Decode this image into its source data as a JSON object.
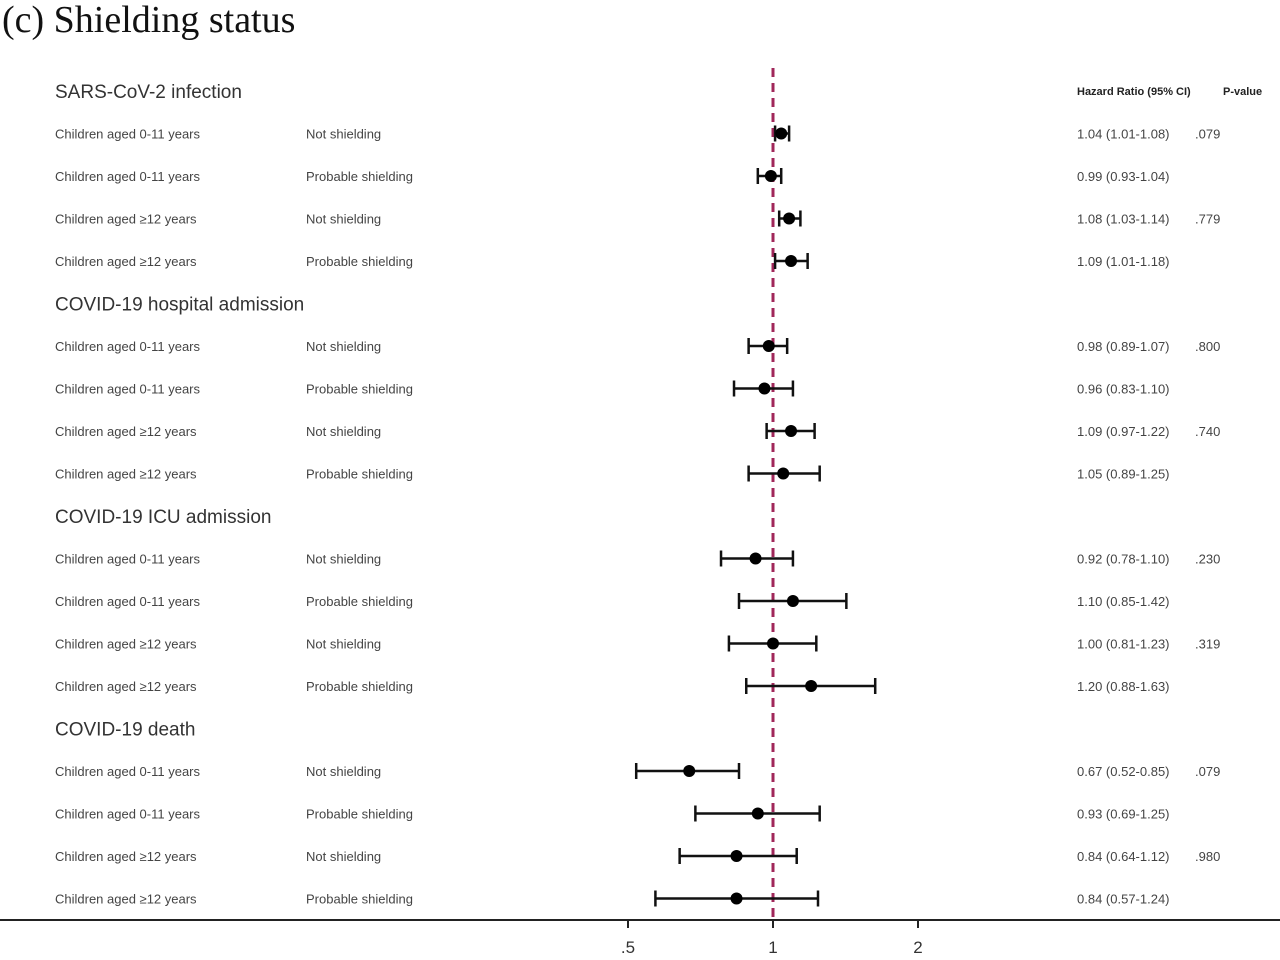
{
  "title": "(c) Shielding status",
  "chart_data": {
    "type": "forest",
    "x_scale": "log",
    "reference_line": 1,
    "reference_color": "#a0275a",
    "marker_color": "#000000",
    "xticks": [
      {
        "value": 0.5,
        "label": ".5"
      },
      {
        "value": 1,
        "label": "1"
      },
      {
        "value": 2,
        "label": "2"
      }
    ],
    "columns": {
      "hr": "Hazard Ratio (95% CI)",
      "p": "P-value"
    },
    "groups": [
      {
        "title": "SARS-CoV-2 infection",
        "rows": [
          {
            "age": "Children aged 0-11 years",
            "status": "Not shielding",
            "hr": 1.04,
            "lo": 1.01,
            "hi": 1.08,
            "text": "1.04 (1.01-1.08)",
            "p": ".079"
          },
          {
            "age": "Children aged 0-11 years",
            "status": "Probable shielding",
            "hr": 0.99,
            "lo": 0.93,
            "hi": 1.04,
            "text": "0.99 (0.93-1.04)",
            "p": ""
          },
          {
            "age": "Children aged ≥12 years",
            "status": "Not shielding",
            "hr": 1.08,
            "lo": 1.03,
            "hi": 1.14,
            "text": "1.08 (1.03-1.14)",
            "p": ".779"
          },
          {
            "age": "Children aged ≥12 years",
            "status": "Probable shielding",
            "hr": 1.09,
            "lo": 1.01,
            "hi": 1.18,
            "text": "1.09 (1.01-1.18)",
            "p": ""
          }
        ]
      },
      {
        "title": "COVID-19 hospital admission",
        "rows": [
          {
            "age": "Children aged 0-11 years",
            "status": "Not shielding",
            "hr": 0.98,
            "lo": 0.89,
            "hi": 1.07,
            "text": "0.98 (0.89-1.07)",
            "p": ".800"
          },
          {
            "age": "Children aged 0-11 years",
            "status": "Probable shielding",
            "hr": 0.96,
            "lo": 0.83,
            "hi": 1.1,
            "text": "0.96 (0.83-1.10)",
            "p": ""
          },
          {
            "age": "Children aged ≥12 years",
            "status": "Not shielding",
            "hr": 1.09,
            "lo": 0.97,
            "hi": 1.22,
            "text": "1.09 (0.97-1.22)",
            "p": ".740"
          },
          {
            "age": "Children aged ≥12 years",
            "status": "Probable shielding",
            "hr": 1.05,
            "lo": 0.89,
            "hi": 1.25,
            "text": "1.05 (0.89-1.25)",
            "p": ""
          }
        ]
      },
      {
        "title": "COVID-19 ICU admission",
        "rows": [
          {
            "age": "Children aged 0-11 years",
            "status": "Not shielding",
            "hr": 0.92,
            "lo": 0.78,
            "hi": 1.1,
            "text": "0.92 (0.78-1.10)",
            "p": ".230"
          },
          {
            "age": "Children aged 0-11 years",
            "status": "Probable shielding",
            "hr": 1.1,
            "lo": 0.85,
            "hi": 1.42,
            "text": "1.10 (0.85-1.42)",
            "p": ""
          },
          {
            "age": "Children aged ≥12 years",
            "status": "Not shielding",
            "hr": 1.0,
            "lo": 0.81,
            "hi": 1.23,
            "text": "1.00 (0.81-1.23)",
            "p": ".319"
          },
          {
            "age": "Children aged ≥12 years",
            "status": "Probable shielding",
            "hr": 1.2,
            "lo": 0.88,
            "hi": 1.63,
            "text": "1.20 (0.88-1.63)",
            "p": ""
          }
        ]
      },
      {
        "title": "COVID-19 death",
        "rows": [
          {
            "age": "Children aged 0-11 years",
            "status": "Not shielding",
            "hr": 0.67,
            "lo": 0.52,
            "hi": 0.85,
            "text": "0.67 (0.52-0.85)",
            "p": ".079"
          },
          {
            "age": "Children aged 0-11 years",
            "status": "Probable shielding",
            "hr": 0.93,
            "lo": 0.69,
            "hi": 1.25,
            "text": "0.93 (0.69-1.25)",
            "p": ""
          },
          {
            "age": "Children aged ≥12 years",
            "status": "Not shielding",
            "hr": 0.84,
            "lo": 0.64,
            "hi": 1.12,
            "text": "0.84 (0.64-1.12)",
            "p": ".980"
          },
          {
            "age": "Children aged ≥12 years",
            "status": "Probable shielding",
            "hr": 0.84,
            "lo": 0.57,
            "hi": 1.24,
            "text": "0.84 (0.57-1.24)",
            "p": ""
          }
        ]
      }
    ]
  }
}
